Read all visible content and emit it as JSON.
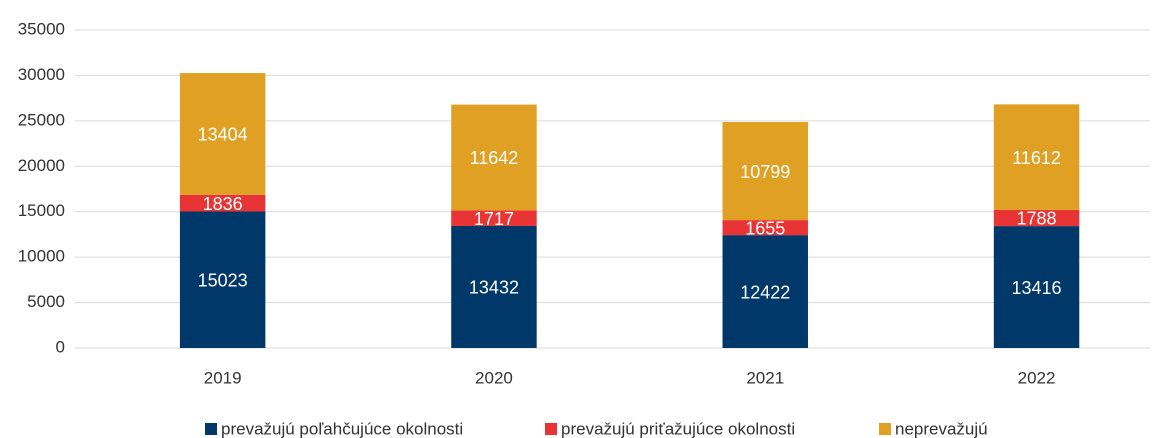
{
  "chart_data": {
    "type": "stacked_bar",
    "categories": [
      "2019",
      "2020",
      "2021",
      "2022"
    ],
    "series": [
      {
        "name": "prevažujú poľahčujúce okolnosti",
        "color": "#003869",
        "values": [
          15023,
          13432,
          12422,
          13416
        ]
      },
      {
        "name": "prevažujú priťažujúce okolnosti",
        "color": "#e83434",
        "values": [
          1836,
          1717,
          1655,
          1788
        ]
      },
      {
        "name": "neprevažujú",
        "color": "#e0a023",
        "values": [
          13404,
          11642,
          10799,
          11612
        ]
      }
    ],
    "ylim": [
      0,
      35000
    ],
    "yticks": [
      0,
      5000,
      10000,
      15000,
      20000,
      25000,
      30000,
      35000
    ],
    "grid": true,
    "legend": "bottom"
  }
}
